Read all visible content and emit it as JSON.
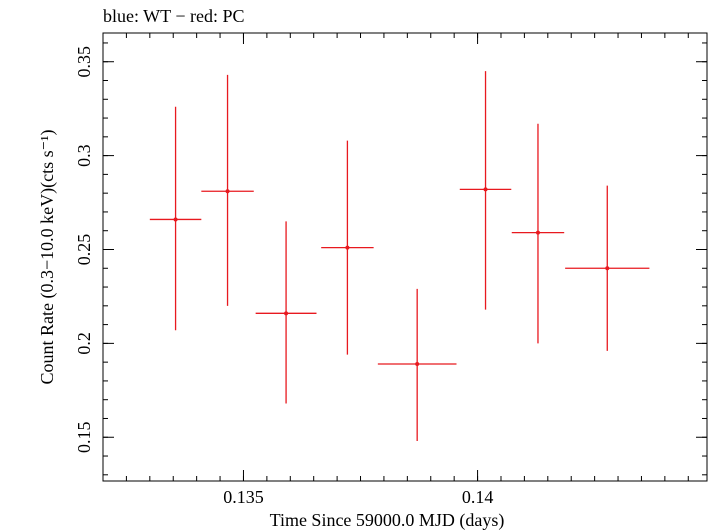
{
  "chart_data": {
    "type": "scatter",
    "title": "blue: WT − red: PC",
    "xlabel": "Time Since 59000.0 MJD (days)",
    "ylabel": "Count Rate (0.3−10.0 keV)(cts s⁻¹)",
    "xlim": [
      0.132,
      0.1449
    ],
    "ylim": [
      0.1267,
      0.3653
    ],
    "x_ticks": [
      0.135,
      0.14
    ],
    "x_tick_labels": [
      "0.135",
      "0.14"
    ],
    "y_ticks": [
      0.15,
      0.2,
      0.25,
      0.3,
      0.35
    ],
    "y_tick_labels": [
      "0.15",
      "0.2",
      "0.25",
      "0.3",
      "0.35"
    ],
    "grid": false,
    "series": [
      {
        "color": "#e8191f",
        "points": [
          {
            "x": 0.13355,
            "y": 0.266,
            "xerr": 0.00055,
            "ylo": 0.207,
            "yhi": 0.326
          },
          {
            "x": 0.13466,
            "y": 0.281,
            "xerr": 0.00056,
            "ylo": 0.22,
            "yhi": 0.343
          },
          {
            "x": 0.13591,
            "y": 0.216,
            "xerr": 0.00065,
            "ylo": 0.168,
            "yhi": 0.265
          },
          {
            "x": 0.13722,
            "y": 0.251,
            "xerr": 0.00056,
            "ylo": 0.194,
            "yhi": 0.308
          },
          {
            "x": 0.13871,
            "y": 0.189,
            "xerr": 0.00084,
            "ylo": 0.148,
            "yhi": 0.229
          },
          {
            "x": 0.14017,
            "y": 0.282,
            "xerr": 0.00055,
            "ylo": 0.218,
            "yhi": 0.345
          },
          {
            "x": 0.14129,
            "y": 0.259,
            "xerr": 0.00056,
            "ylo": 0.2,
            "yhi": 0.317
          },
          {
            "x": 0.14277,
            "y": 0.24,
            "xerr": 0.0009,
            "ylo": 0.196,
            "yhi": 0.284
          }
        ]
      }
    ]
  }
}
